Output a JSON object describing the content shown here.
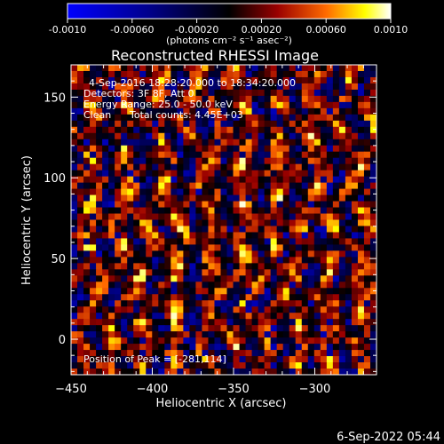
{
  "chart_data": {
    "type": "heatmap",
    "title": "Reconstructed RHESSI Image",
    "xlabel": "Heliocentric X (arcsec)",
    "ylabel": "Heliocentric Y (arcsec)",
    "xlim": [
      -450,
      -262
    ],
    "ylim": [
      -22,
      170
    ],
    "xticks": [
      -450,
      -400,
      -350,
      -300
    ],
    "yticks": [
      0,
      50,
      100,
      150
    ],
    "colorbar": {
      "range": [
        -0.001,
        0.001
      ],
      "ticks": [
        "-0.0010",
        "-0.00060",
        "-0.00020",
        "0.00020",
        "0.00060",
        "0.0010"
      ],
      "units": "(photons cm⁻² s⁻¹ asec⁻²)"
    },
    "annotations": [
      "4-Sep-2016 18:28:20.000 to 18:34:20.000",
      "Detectors: 3F 8F, Att 0",
      "Energy Range: 25.0 - 50.0 keV",
      "Clean",
      "Total counts: 4.45E+03"
    ],
    "peak_label": "Position of Peak = [-281,114]",
    "peak_position": [
      -281,
      114
    ],
    "grid": false,
    "colormap": [
      "#0000ff",
      "#00008c",
      "#000000",
      "#9a0000",
      "#ff6a00",
      "#ffff00",
      "#ffffff"
    ]
  },
  "footer": {
    "timestamp": "6-Sep-2022 05:44"
  }
}
